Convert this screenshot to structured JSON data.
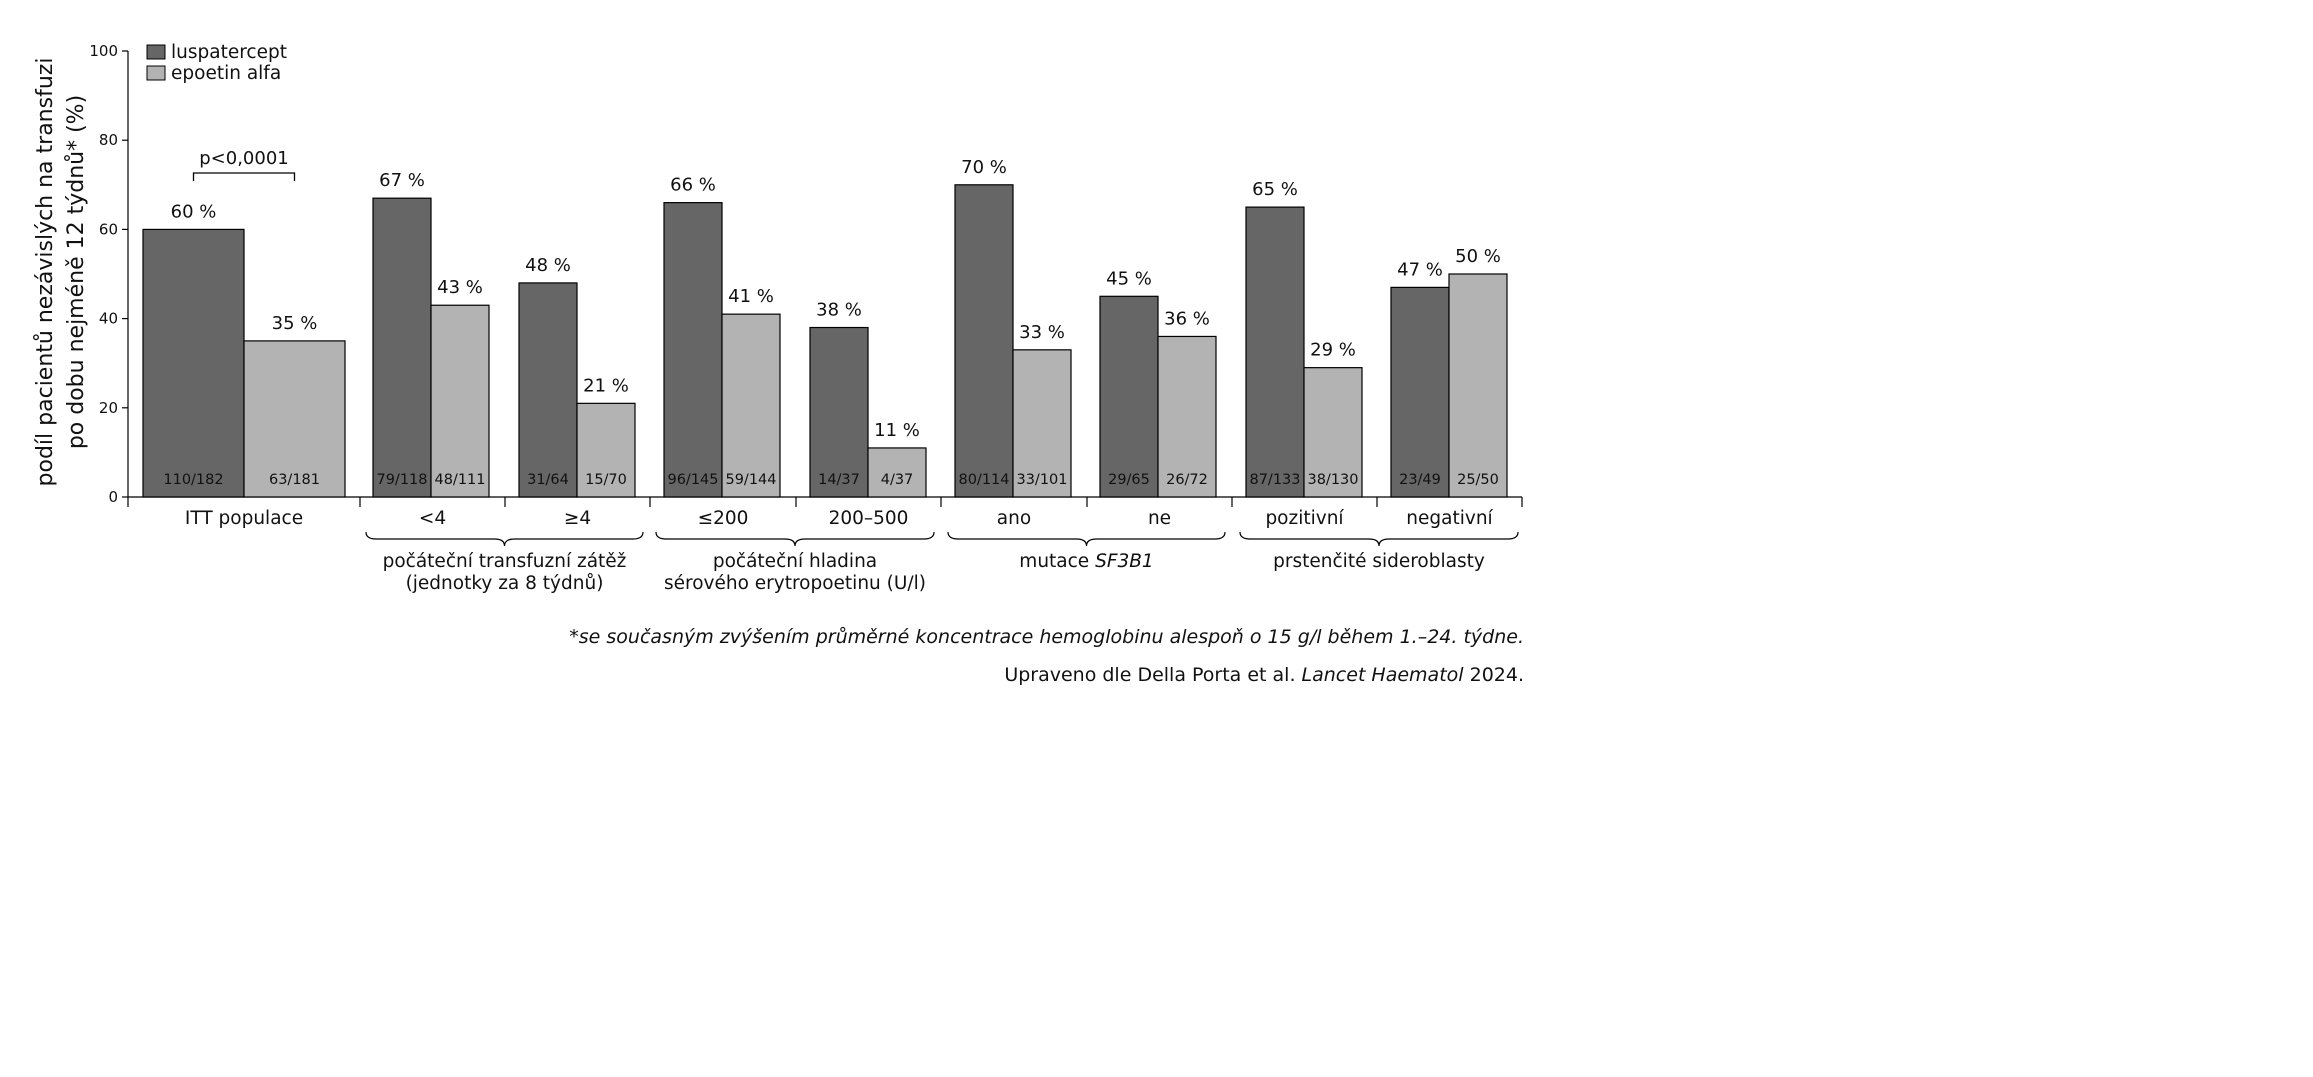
{
  "chart_data": {
    "type": "bar",
    "ylabel": [
      "podíl pacientů nezávislých na transfuzi",
      "po dobu nejméně 12 týdnů* (%)"
    ],
    "ylim": [
      0,
      100
    ],
    "yticks": [
      0,
      20,
      40,
      60,
      80,
      100
    ],
    "grid": false,
    "legend_position": "top-left",
    "series": [
      {
        "name": "luspatercept",
        "color": "#666666"
      },
      {
        "name": "epoetin alfa",
        "color": "#b3b3b3"
      }
    ],
    "categories": [
      "ITT populace",
      "<4",
      "≥4",
      "≤200",
      "200–500",
      "ano",
      "ne",
      "pozitivní",
      "negativní"
    ],
    "bars": [
      {
        "values": [
          60,
          35
        ],
        "labels": [
          "60 %",
          "35 %"
        ],
        "counts": [
          "110/182",
          "63/181"
        ]
      },
      {
        "values": [
          67,
          43
        ],
        "labels": [
          "67 %",
          "43 %"
        ],
        "counts": [
          "79/118",
          "48/111"
        ]
      },
      {
        "values": [
          48,
          21
        ],
        "labels": [
          "48 %",
          "21 %"
        ],
        "counts": [
          "31/64",
          "15/70"
        ]
      },
      {
        "values": [
          66,
          41
        ],
        "labels": [
          "66 %",
          "41 %"
        ],
        "counts": [
          "96/145",
          "59/144"
        ]
      },
      {
        "values": [
          38,
          11
        ],
        "labels": [
          "38 %",
          "11 %"
        ],
        "counts": [
          "14/37",
          "4/37"
        ]
      },
      {
        "values": [
          70,
          33
        ],
        "labels": [
          "70 %",
          "33 %"
        ],
        "counts": [
          "80/114",
          "33/101"
        ]
      },
      {
        "values": [
          45,
          36
        ],
        "labels": [
          "45 %",
          "36 %"
        ],
        "counts": [
          "29/65",
          "26/72"
        ]
      },
      {
        "values": [
          65,
          29
        ],
        "labels": [
          "65 %",
          "29 %"
        ],
        "counts": [
          "87/133",
          "38/130"
        ]
      },
      {
        "values": [
          47,
          50
        ],
        "labels": [
          "47 %",
          "50 %"
        ],
        "counts": [
          "23/49",
          "25/50"
        ]
      }
    ],
    "groups": [
      {
        "label": [
          "počáteční transfuzní zátěž",
          "(jednotky za 8 týdnů)"
        ],
        "categories": [
          "<4",
          "≥4"
        ]
      },
      {
        "label": [
          "počáteční hladina",
          "sérového erytropoetinu (U/l)"
        ],
        "categories": [
          "≤200",
          "200–500"
        ]
      },
      {
        "label_prefix": "mutace ",
        "label_italic": "SF3B1",
        "categories": [
          "ano",
          "ne"
        ]
      },
      {
        "label": [
          "prstenčité sideroblasty"
        ],
        "categories": [
          "pozitivní",
          "negativní"
        ]
      }
    ],
    "annotations": [
      {
        "text": "p<0,0001",
        "category": "ITT populace"
      }
    ]
  },
  "footnotes": {
    "note": "*se současným zvýšením průměrné koncentrace hemoglobinu alespoň o 15 g/l během 1.–24. týdne.",
    "source_prefix": "Upraveno dle Della Porta et al. ",
    "source_journal": "Lancet Haematol",
    "source_suffix": " 2024."
  }
}
